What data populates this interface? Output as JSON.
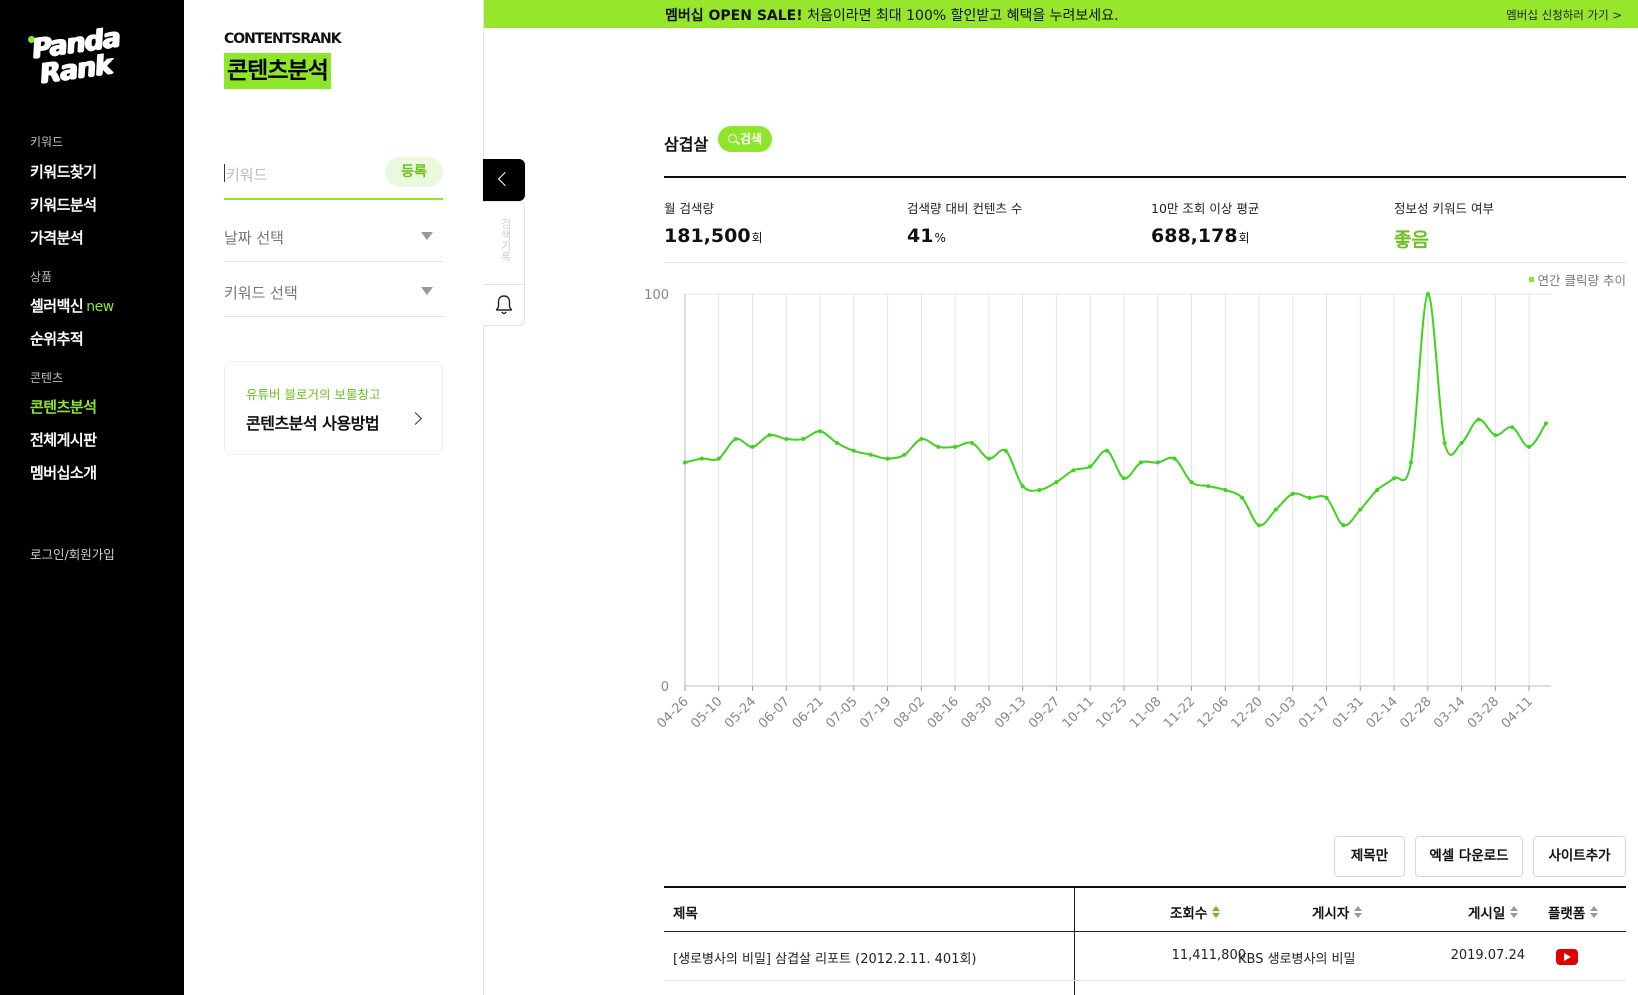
{
  "nav": {
    "logo": {
      "line1": "Panda",
      "line2": "Rank"
    },
    "sections": [
      {
        "category": "키워드",
        "items": [
          "키워드찾기",
          "키워드분석",
          "가격분석"
        ]
      },
      {
        "category": "상품",
        "items": [
          "셀러백신",
          "순위추적"
        ]
      },
      {
        "category": "콘텐츠",
        "items": [
          "콘텐츠분석",
          "전체게시판",
          "멤버십소개"
        ]
      }
    ],
    "new_badge": "new",
    "login": "로그인/회원가입"
  },
  "panel": {
    "brand_en": "CONTENTSRANK",
    "brand_ko": "콘텐츠분석",
    "keyword_placeholder": "키워드",
    "register_label": "등록",
    "date_select": "날짜 선택",
    "keyword_select": "키워드 선택",
    "guide_sub": "유튜버 블로거의 보물창고",
    "guide_main": "콘텐츠분석 사용방법",
    "history_label": "검색기록"
  },
  "banner": {
    "bold": "멤버십 OPEN SALE!",
    "text": " 처음이라면 최대 100% 할인받고 혜택을 누려보세요.",
    "link": "멤버십 신청하러 가기 >"
  },
  "main": {
    "keyword": "삼겹살",
    "search_label": "검색",
    "stats": [
      {
        "label": "월 검색량",
        "value": "181,500",
        "unit": "회"
      },
      {
        "label": "검색량 대비 컨텐츠 수",
        "value": "41",
        "unit": "%"
      },
      {
        "label": "10만 조회 이상 평균",
        "value": "688,178",
        "unit": "회"
      },
      {
        "label": "정보성 키워드 여부",
        "value": "좋음",
        "unit": ""
      }
    ],
    "buttons": {
      "title_only": "제목만",
      "excel": "엑셀 다운로드",
      "add_site": "사이트추가"
    },
    "table": {
      "headers": {
        "title": "제목",
        "views": "조회수",
        "author": "게시자",
        "date": "게시일",
        "platform": "플랫폼"
      },
      "rows": [
        {
          "title": "[생로병사의 비밀] 삼겹살 리포트 (2012.2.11. 401회)",
          "views": "11,411,800",
          "author": "KBS 생로병사의 비밀",
          "date": "2019.07.24",
          "platform": "youtube"
        }
      ]
    }
  },
  "colors": {
    "accent": "#8ee62a",
    "banner": "#96e62c",
    "line": "#3fd21f"
  },
  "chart_data": {
    "type": "line",
    "title": "",
    "legend": "연간 클릭량 추이",
    "ylim": [
      0,
      100
    ],
    "yticks": [
      0,
      100
    ],
    "tick_labels": [
      "04-26",
      "05-10",
      "05-24",
      "06-07",
      "06-21",
      "07-05",
      "07-19",
      "08-02",
      "08-16",
      "08-30",
      "09-13",
      "09-27",
      "10-11",
      "10-25",
      "11-08",
      "11-22",
      "12-06",
      "12-20",
      "01-03",
      "01-17",
      "01-31",
      "02-14",
      "02-28",
      "03-14",
      "03-28",
      "04-11"
    ],
    "x": [
      "04-26",
      "05-03",
      "05-10",
      "05-17",
      "05-24",
      "05-31",
      "06-07",
      "06-14",
      "06-21",
      "06-28",
      "07-05",
      "07-12",
      "07-19",
      "07-26",
      "08-02",
      "08-09",
      "08-16",
      "08-23",
      "08-30",
      "09-06",
      "09-13",
      "09-20",
      "09-27",
      "10-04",
      "10-11",
      "10-18",
      "10-25",
      "11-01",
      "11-08",
      "11-15",
      "11-22",
      "11-29",
      "12-06",
      "12-13",
      "12-20",
      "12-27",
      "01-03",
      "01-10",
      "01-17",
      "01-24",
      "01-31",
      "02-07",
      "02-14",
      "02-21",
      "02-28",
      "03-07",
      "03-14",
      "03-21",
      "03-28",
      "04-04",
      "04-11",
      "04-18"
    ],
    "series": [
      {
        "values": [
          57,
          58,
          58,
          63,
          61,
          64,
          63,
          63,
          65,
          62,
          60,
          59,
          58,
          59,
          63,
          61,
          61,
          62,
          58,
          60,
          51,
          50,
          52,
          55,
          56,
          60,
          53,
          57,
          57,
          58,
          52,
          51,
          50,
          48,
          41,
          45,
          49,
          48,
          48,
          41,
          45,
          50,
          53,
          57,
          100,
          62,
          62,
          68,
          64,
          66,
          61,
          67
        ]
      }
    ]
  }
}
